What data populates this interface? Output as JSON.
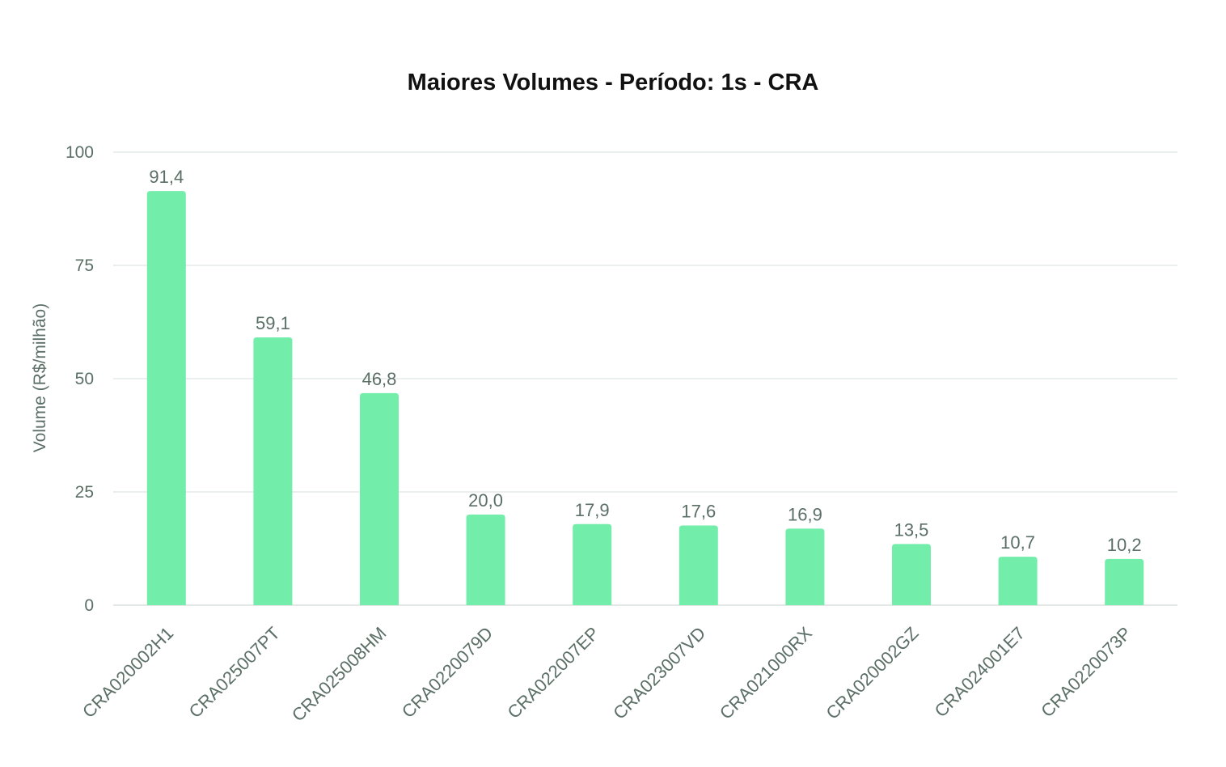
{
  "chart_data": {
    "type": "bar",
    "title": "Maiores Volumes - Período: 1s - CRA",
    "xlabel": "",
    "ylabel": "Volume (R$/milhão)",
    "ylim": [
      0,
      100
    ],
    "yticks": [
      0,
      25,
      50,
      75,
      100
    ],
    "grid": true,
    "bar_color": "#72edaa",
    "categories": [
      "CRA020002H1",
      "CRA025007PT",
      "CRA025008HM",
      "CRA0220079D",
      "CRA022007EP",
      "CRA023007VD",
      "CRA021000RX",
      "CRA020002GZ",
      "CRA024001E7",
      "CRA0220073P"
    ],
    "values": [
      91.4,
      59.1,
      46.8,
      20.0,
      17.9,
      17.6,
      16.9,
      13.5,
      10.7,
      10.2
    ],
    "data_labels": [
      "91,4",
      "59,1",
      "46,8",
      "20,0",
      "17,9",
      "17,6",
      "16,9",
      "13,5",
      "10,7",
      "10,2"
    ]
  }
}
